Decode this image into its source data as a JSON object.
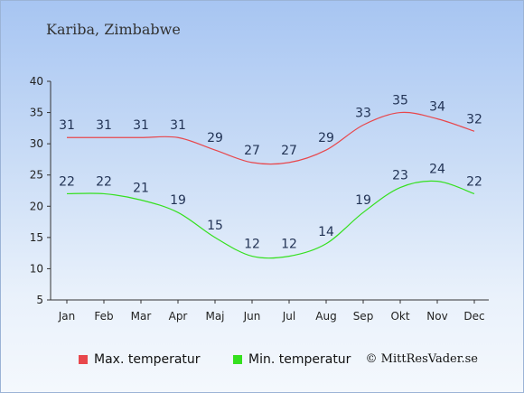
{
  "location": "Kariba, Zimbabwe",
  "credit": "© MittResVader.se",
  "chart_data": {
    "type": "line",
    "categories": [
      "Jan",
      "Feb",
      "Mar",
      "Apr",
      "Maj",
      "Jun",
      "Jul",
      "Aug",
      "Sep",
      "Okt",
      "Nov",
      "Dec"
    ],
    "series": [
      {
        "name": "Max. temperatur",
        "color": "#e8474c",
        "values": [
          31,
          31,
          31,
          31,
          29,
          27,
          27,
          29,
          33,
          35,
          34,
          32
        ]
      },
      {
        "name": "Min. temperatur",
        "color": "#35e01f",
        "values": [
          22,
          22,
          21,
          19,
          15,
          12,
          12,
          14,
          19,
          23,
          24,
          22
        ]
      }
    ],
    "yticks": [
      5,
      10,
      15,
      20,
      25,
      30,
      35,
      40
    ],
    "ylim": [
      5,
      40
    ],
    "grid": false,
    "legend": "bottom"
  }
}
